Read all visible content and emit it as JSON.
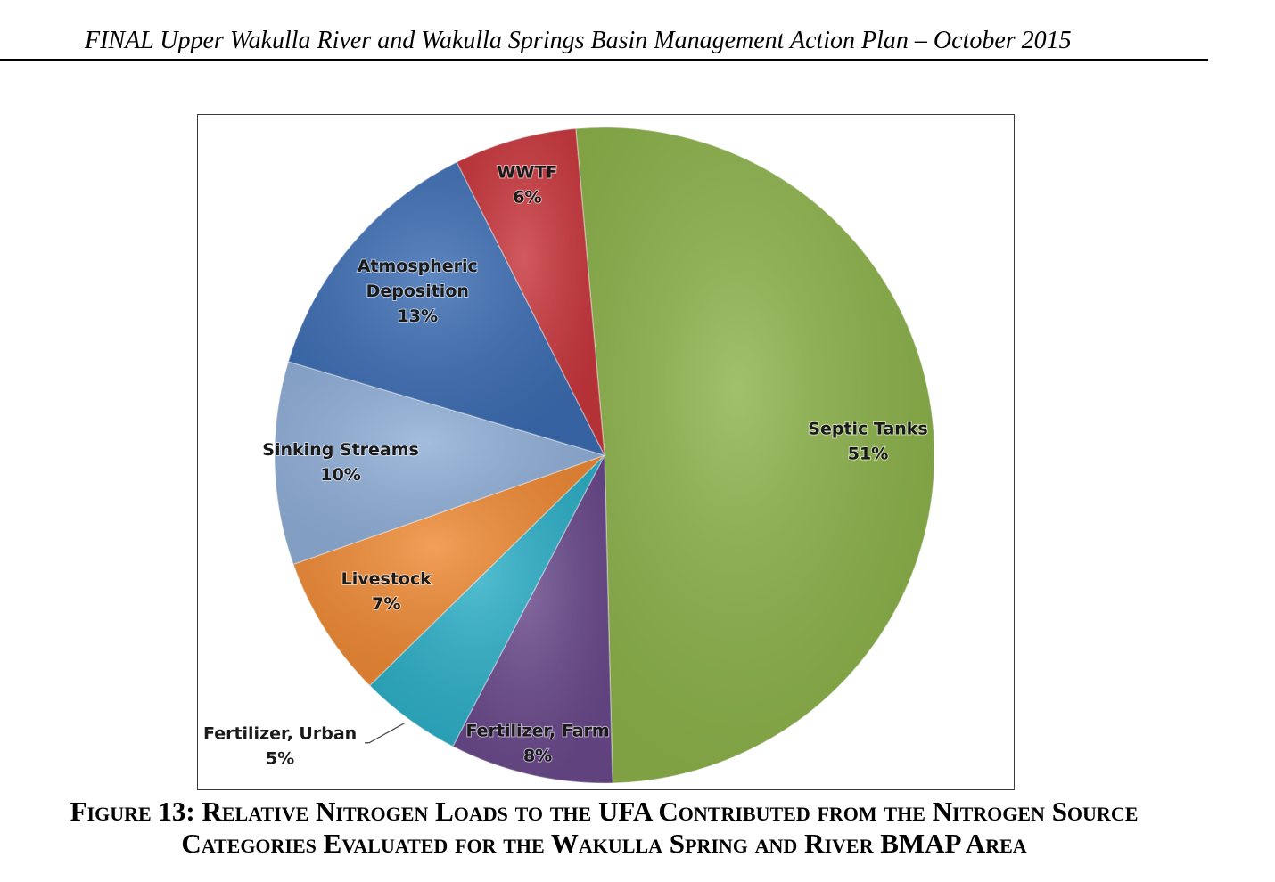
{
  "header": {
    "title": "FINAL Upper Wakulla River and Wakulla Springs Basin Management Action Plan – October 2015"
  },
  "caption": {
    "line1": "Figure 13:  Relative Nitrogen Loads to the UFA Contributed from the Nitrogen Source",
    "line2": "Categories Evaluated for the Wakulla Spring and River BMAP Area"
  },
  "chart_data": {
    "type": "pie",
    "title": "",
    "legend": "none",
    "labels_on_slices": true,
    "slices": [
      {
        "name": "Septic Tanks",
        "value": 51,
        "label": "51%",
        "color": "#8db34b"
      },
      {
        "name": "Fertilizer, Farm",
        "value": 8,
        "label": "8%",
        "color": "#6b4a8c"
      },
      {
        "name": "Fertilizer, Urban",
        "value": 5,
        "label": "5%",
        "color": "#2eb0c8"
      },
      {
        "name": "Livestock",
        "value": 7,
        "label": "7%",
        "color": "#ef8a35"
      },
      {
        "name": "Sinking Streams",
        "value": 10,
        "label": "10%",
        "color": "#90afd8"
      },
      {
        "name": "Atmospheric Deposition",
        "value": 13,
        "label": "13%",
        "color": "#3c6db3"
      },
      {
        "name": "WWTF",
        "value": 6,
        "label": "6%",
        "color": "#c8363c"
      }
    ]
  }
}
